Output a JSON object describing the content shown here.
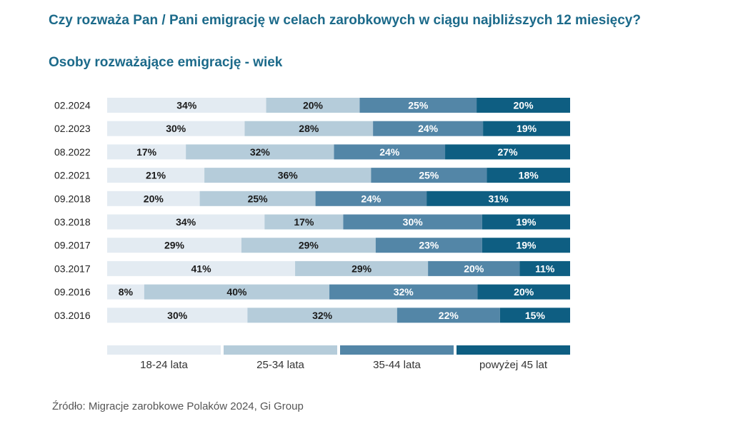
{
  "title": "Czy rozważa Pan / Pani emigrację w celach zarobkowych w ciągu najbliższych 12 miesięcy?",
  "subtitle": "Osoby rozważające emigrację - wiek",
  "source": "Źródło: Migracje zarobkowe Polaków 2024, Gi Group",
  "chart_data": {
    "type": "bar",
    "orientation": "horizontal",
    "stacked": true,
    "normalized": true,
    "value_unit": "%",
    "categories": [
      "02.2024",
      "02.2023",
      "08.2022",
      "02.2021",
      "09.2018",
      "03.2018",
      "09.2017",
      "03.2017",
      "09.2016",
      "03.2016"
    ],
    "series": [
      {
        "name": "18-24 lata",
        "color": "#e3ebf2",
        "label_color": "#1a1a1a",
        "values": [
          34,
          30,
          17,
          21,
          20,
          34,
          29,
          41,
          8,
          30
        ]
      },
      {
        "name": "25-34 lata",
        "color": "#b5ccda",
        "label_color": "#1a1a1a",
        "values": [
          20,
          28,
          32,
          36,
          25,
          17,
          29,
          29,
          40,
          32
        ]
      },
      {
        "name": "35-44 lata",
        "color": "#5386a7",
        "label_color": "#ffffff",
        "values": [
          25,
          24,
          24,
          25,
          24,
          30,
          23,
          20,
          32,
          22
        ]
      },
      {
        "name": "powyżej 45 lat",
        "color": "#0e5e82",
        "label_color": "#ffffff",
        "values": [
          20,
          19,
          27,
          18,
          31,
          19,
          19,
          11,
          20,
          15
        ]
      }
    ],
    "legend_position": "bottom",
    "grid": false
  }
}
